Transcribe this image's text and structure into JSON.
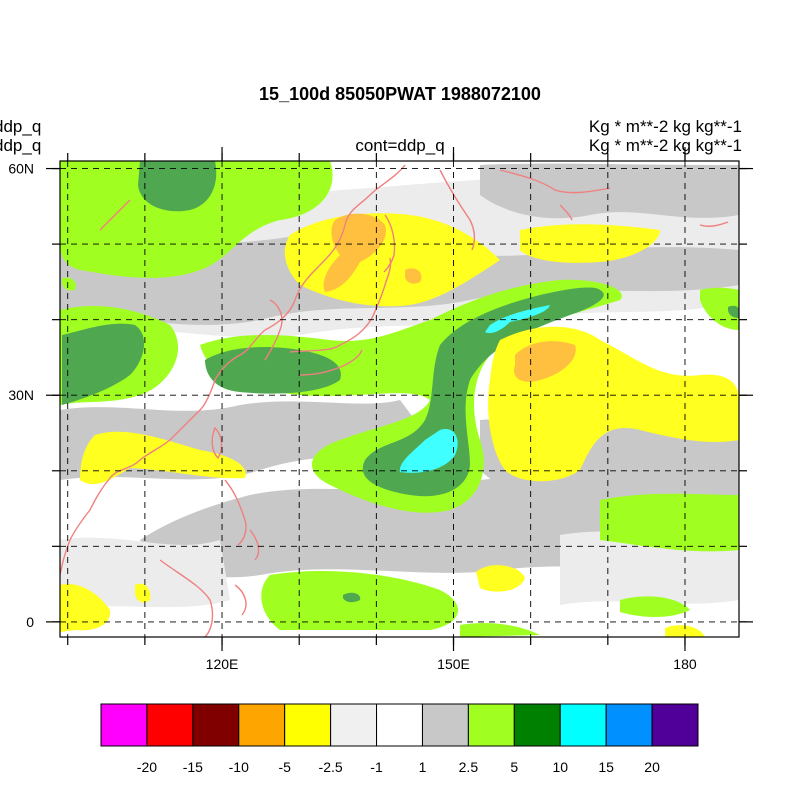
{
  "title": "15_100d 85050PWAT  1988072100",
  "left_labels": [
    "ddp_q",
    "ddp_q"
  ],
  "right_labels": [
    "Kg  * m**-2 kg kg**-1",
    "Kg  * m**-2 kg kg**-1"
  ],
  "center_label": "cont=ddp_q",
  "map": {
    "lon_ticks": [
      {
        "lon": 120,
        "label": "120E"
      },
      {
        "lon": 150,
        "label": "150E"
      },
      {
        "lon": 180,
        "label": "180"
      }
    ],
    "lat_ticks": [
      {
        "lat": 60,
        "label": "60N"
      },
      {
        "lat": 30,
        "label": "30N"
      },
      {
        "lat": 0,
        "label": "0"
      }
    ],
    "lon_range": [
      99,
      187
    ],
    "lat_range": [
      -2,
      61
    ]
  },
  "colorbar": {
    "levels": [
      "-20",
      "-15",
      "-10",
      "-5",
      "-2.5",
      "-1",
      "1",
      "2.5",
      "5",
      "10",
      "15",
      "20"
    ],
    "colors": [
      "#ff00ff",
      "#ff0000",
      "#800000",
      "#ffa500",
      "#ffff00",
      "#f0f0f0",
      "#ffffff",
      "#c8c8c8",
      "#a0ff20",
      "#008000",
      "#00ffff",
      "#0090ff",
      "#500098"
    ]
  },
  "style": {
    "coast_color": "#f08080",
    "grid_color": "#000000"
  }
}
